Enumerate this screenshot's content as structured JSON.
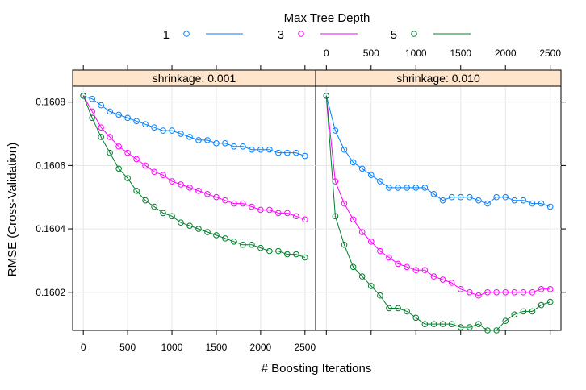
{
  "chart_data": {
    "type": "line",
    "legend": {
      "title": "Max Tree Depth",
      "placement": "top",
      "entries": [
        {
          "label": "1",
          "color": "#0080ff"
        },
        {
          "label": "3",
          "color": "#ff00ff"
        },
        {
          "label": "5",
          "color": "#00802b"
        }
      ]
    },
    "xlabel": "# Boosting Iterations",
    "ylabel": "RMSE (Cross-Validation)",
    "xlim": [
      -120,
      2620
    ],
    "ylim": [
      0.16008,
      0.16085
    ],
    "x_ticks": [
      0,
      500,
      1000,
      1500,
      2000,
      2500
    ],
    "x_tick_labels": [
      "0",
      "500",
      "1000",
      "1500",
      "2000",
      "2500"
    ],
    "y_ticks": [
      0.1602,
      0.1604,
      0.1606,
      0.1608
    ],
    "y_tick_labels": [
      "0.1602",
      "0.1604",
      "0.1606",
      "0.1608"
    ],
    "grid": true,
    "x": [
      0,
      100,
      200,
      300,
      400,
      500,
      600,
      700,
      800,
      900,
      1000,
      1100,
      1200,
      1300,
      1400,
      1500,
      1600,
      1700,
      1800,
      1900,
      2000,
      2100,
      2200,
      2300,
      2400,
      2500
    ],
    "panels": [
      {
        "strip": "shrinkage: 0.001",
        "series": [
          {
            "name": "1",
            "values": [
              0.16082,
              0.16081,
              0.16079,
              0.16077,
              0.16076,
              0.16075,
              0.16074,
              0.16073,
              0.16072,
              0.16071,
              0.16071,
              0.1607,
              0.16069,
              0.16068,
              0.16068,
              0.16067,
              0.16067,
              0.16066,
              0.16066,
              0.16065,
              0.16065,
              0.16065,
              0.16064,
              0.16064,
              0.16064,
              0.16063
            ]
          },
          {
            "name": "3",
            "values": [
              0.16082,
              0.16077,
              0.16072,
              0.16069,
              0.16066,
              0.16064,
              0.16062,
              0.1606,
              0.16058,
              0.16057,
              0.16055,
              0.16054,
              0.16053,
              0.16052,
              0.16051,
              0.1605,
              0.16049,
              0.16048,
              0.16048,
              0.16047,
              0.16046,
              0.16046,
              0.16045,
              0.16045,
              0.16044,
              0.16043
            ]
          },
          {
            "name": "5",
            "values": [
              0.16082,
              0.16075,
              0.16069,
              0.16064,
              0.16059,
              0.16056,
              0.16052,
              0.16049,
              0.16047,
              0.16045,
              0.16044,
              0.16042,
              0.16041,
              0.1604,
              0.16039,
              0.16038,
              0.16037,
              0.16036,
              0.16035,
              0.16035,
              0.16034,
              0.16033,
              0.16033,
              0.16032,
              0.16032,
              0.16031
            ]
          }
        ]
      },
      {
        "strip": "shrinkage: 0.010",
        "series": [
          {
            "name": "1",
            "values": [
              0.16082,
              0.16071,
              0.16065,
              0.16061,
              0.16059,
              0.16057,
              0.16055,
              0.16053,
              0.16053,
              0.16053,
              0.16053,
              0.16053,
              0.16051,
              0.16049,
              0.1605,
              0.1605,
              0.1605,
              0.16049,
              0.16048,
              0.1605,
              0.1605,
              0.16049,
              0.16049,
              0.16048,
              0.16048,
              0.16047
            ]
          },
          {
            "name": "3",
            "values": [
              0.16082,
              0.16055,
              0.16048,
              0.16043,
              0.16039,
              0.16036,
              0.16033,
              0.16031,
              0.16029,
              0.16028,
              0.16027,
              0.16027,
              0.16025,
              0.16024,
              0.16023,
              0.16021,
              0.1602,
              0.16019,
              0.1602,
              0.1602,
              0.1602,
              0.1602,
              0.1602,
              0.1602,
              0.16021,
              0.16021
            ]
          },
          {
            "name": "5",
            "values": [
              0.16082,
              0.16044,
              0.16035,
              0.16028,
              0.16025,
              0.16022,
              0.16019,
              0.16015,
              0.16015,
              0.16014,
              0.16012,
              0.1601,
              0.1601,
              0.1601,
              0.1601,
              0.16009,
              0.16009,
              0.1601,
              0.16008,
              0.16008,
              0.16011,
              0.16013,
              0.16014,
              0.16014,
              0.16016,
              0.16017
            ]
          }
        ]
      }
    ]
  }
}
